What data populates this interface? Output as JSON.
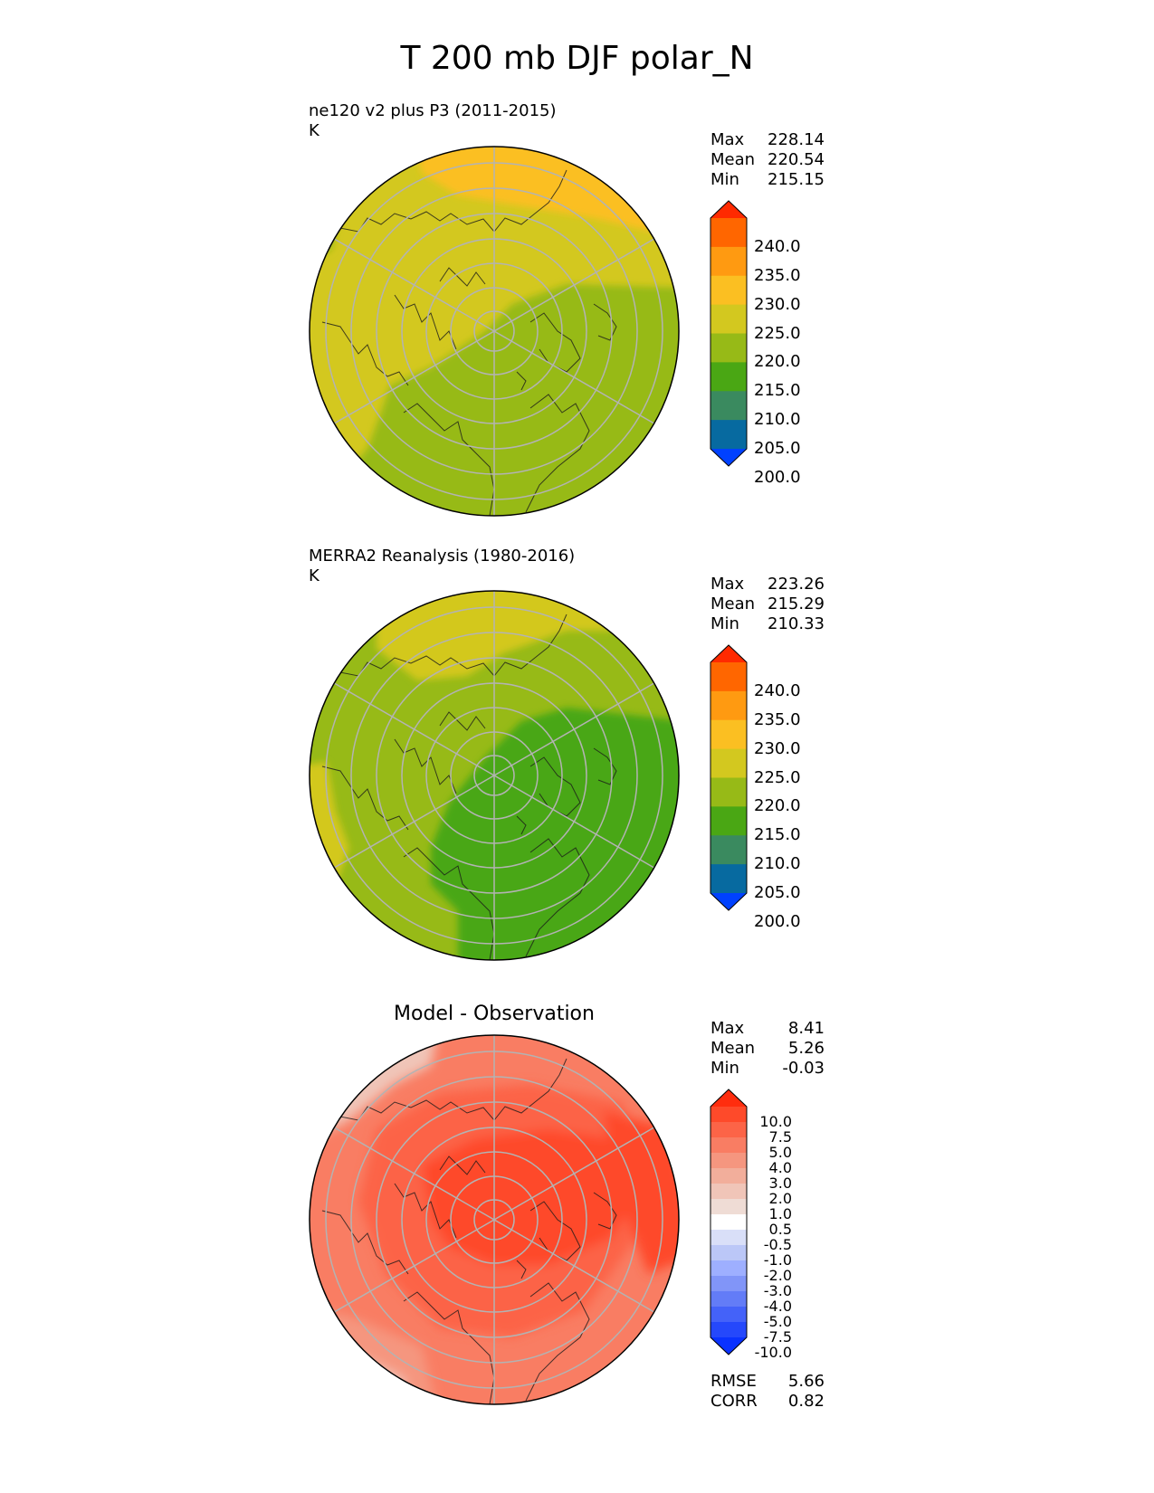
{
  "page": {
    "title": "T 200 mb DJF polar_N"
  },
  "panels": [
    {
      "title": "ne120 v2 plus P3 (2011-2015)",
      "units": "K",
      "stats": [
        {
          "label": "Max",
          "value": "228.14"
        },
        {
          "label": "Mean",
          "value": "220.54"
        },
        {
          "label": "Min",
          "value": "215.15"
        }
      ]
    },
    {
      "title": "MERRA2 Reanalysis (1980-2016)",
      "units": "K",
      "stats": [
        {
          "label": "Max",
          "value": "223.26"
        },
        {
          "label": "Mean",
          "value": "215.29"
        },
        {
          "label": "Min",
          "value": "210.33"
        }
      ]
    },
    {
      "title": "Model - Observation",
      "stats": [
        {
          "label": "Max",
          "value": "8.41"
        },
        {
          "label": "Mean",
          "value": "5.26"
        },
        {
          "label": "Min",
          "value": "-0.03"
        }
      ],
      "metrics": [
        {
          "label": "RMSE",
          "value": "5.66"
        },
        {
          "label": "CORR",
          "value": "0.82"
        }
      ]
    }
  ],
  "colorbars": {
    "temperature": {
      "ticks": [
        "240.0",
        "235.0",
        "230.0",
        "225.0",
        "220.0",
        "215.0",
        "210.0",
        "205.0",
        "200.0"
      ],
      "colors": [
        "#ff2a00",
        "#ff6600",
        "#ff9a11",
        "#fbbf22",
        "#d3c81f",
        "#97ba17",
        "#4aa714",
        "#3a8a5f",
        "#076aa0",
        "#0041ff"
      ]
    },
    "difference": {
      "ticks": [
        "10.0",
        "7.5",
        "5.0",
        "4.0",
        "3.0",
        "2.0",
        "1.0",
        "0.5",
        "-0.5",
        "-1.0",
        "-2.0",
        "-3.0",
        "-4.0",
        "-5.0",
        "-7.5",
        "-10.0"
      ],
      "colors": [
        "#ff2d0e",
        "#fe4a2a",
        "#fc6447",
        "#f97d63",
        "#f5967f",
        "#f2ae9b",
        "#f0c5b8",
        "#efdcd5",
        "#ffffff",
        "#d9dff8",
        "#bbc7f7",
        "#9eafff",
        "#8195f8",
        "#637cf7",
        "#4462f9",
        "#2548fb",
        "#0a32ff"
      ]
    }
  },
  "chart_data": {
    "type": "polar-contour-map",
    "projection": "north-polar-stereographic",
    "title": "T 200 mb DJF polar_N",
    "panels": [
      {
        "title": "ne120 v2 plus P3 (2011-2015)",
        "units": "K",
        "max": 228.14,
        "mean": 220.54,
        "min": 215.15
      },
      {
        "title": "MERRA2 Reanalysis (1980-2016)",
        "units": "K",
        "max": 223.26,
        "mean": 215.29,
        "min": 210.33
      },
      {
        "title": "Model - Observation",
        "max": 8.41,
        "mean": 5.26,
        "min": -0.03,
        "rmse": 5.66,
        "corr": 0.82
      }
    ],
    "temperature_levels": [
      200,
      205,
      210,
      215,
      220,
      225,
      230,
      235,
      240
    ],
    "difference_levels": [
      -10,
      -7.5,
      -5,
      -4,
      -3,
      -2,
      -1,
      -0.5,
      0.5,
      1,
      2,
      3,
      4,
      5,
      7.5,
      10
    ]
  }
}
